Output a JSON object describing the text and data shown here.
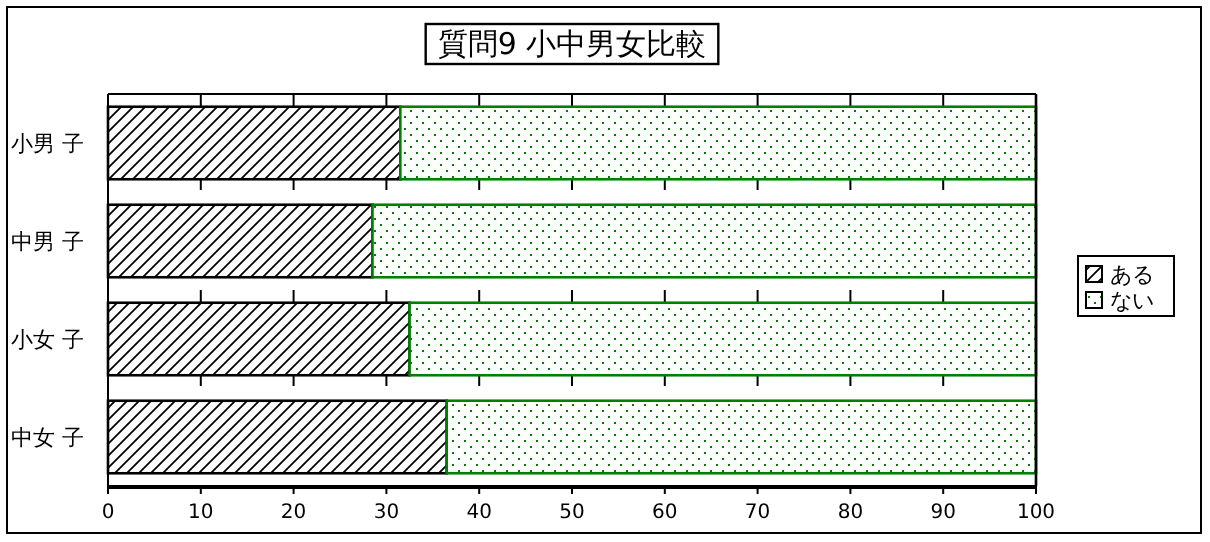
{
  "chart_data": {
    "type": "bar",
    "orientation": "horizontal",
    "stacked": true,
    "title": "質問9 小中男女比較",
    "categories": [
      "小男 子",
      "中男 子",
      "小女 子",
      "中女 子"
    ],
    "series": [
      {
        "name": "ある",
        "color": "#000000",
        "values": [
          31.5,
          28.5,
          32.5,
          36.5
        ]
      },
      {
        "name": "ない",
        "color": "#008000",
        "values": [
          68.5,
          71.5,
          67.5,
          63.5
        ]
      }
    ],
    "xlim": [
      0,
      100
    ],
    "xticks": [
      0,
      10,
      20,
      30,
      40,
      50,
      60,
      70,
      80,
      90,
      100
    ],
    "grid": "x",
    "legend": "right"
  }
}
